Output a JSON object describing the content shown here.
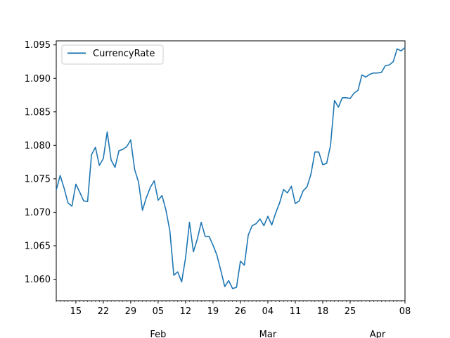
{
  "chart_data": {
    "type": "line",
    "title": "",
    "xlabel": "",
    "ylabel": "",
    "legend": {
      "placement": "top-left",
      "entries": [
        "CurrencyRate"
      ]
    },
    "grid": false,
    "xlim": [
      "2024-01-10",
      "2024-04-08"
    ],
    "ylim": [
      1.0568,
      1.0956
    ],
    "y_ticks": [
      1.06,
      1.065,
      1.07,
      1.075,
      1.08,
      1.085,
      1.09,
      1.095
    ],
    "y_tick_labels": [
      "1.060",
      "1.065",
      "1.070",
      "1.075",
      "1.080",
      "1.085",
      "1.090",
      "1.095"
    ],
    "x_day_ticks": [
      {
        "date": "2024-01-15",
        "label": "15"
      },
      {
        "date": "2024-01-22",
        "label": "22"
      },
      {
        "date": "2024-01-29",
        "label": "29"
      },
      {
        "date": "2024-02-05",
        "label": "05"
      },
      {
        "date": "2024-02-12",
        "label": "12"
      },
      {
        "date": "2024-02-19",
        "label": "19"
      },
      {
        "date": "2024-02-26",
        "label": "26"
      },
      {
        "date": "2024-03-04",
        "label": "04"
      },
      {
        "date": "2024-03-11",
        "label": "11"
      },
      {
        "date": "2024-03-18",
        "label": "18"
      },
      {
        "date": "2024-03-25",
        "label": "25"
      },
      {
        "date": "2024-04-08",
        "label": "08"
      }
    ],
    "x_month_labels": [
      {
        "date": "2024-02-05",
        "label": "Feb"
      },
      {
        "date": "2024-03-04",
        "label": "Mar"
      },
      {
        "date": "2024-04-01",
        "label": "Apr"
      }
    ],
    "series": [
      {
        "name": "CurrencyRate",
        "color": "#1f77b4",
        "points": [
          [
            "2024-01-10",
            1.0733
          ],
          [
            "2024-01-11",
            1.0755
          ],
          [
            "2024-01-12",
            1.0736
          ],
          [
            "2024-01-13",
            1.0714
          ],
          [
            "2024-01-14",
            1.0709
          ],
          [
            "2024-01-15",
            1.0742
          ],
          [
            "2024-01-16",
            1.073
          ],
          [
            "2024-01-17",
            1.0717
          ],
          [
            "2024-01-18",
            1.0716
          ],
          [
            "2024-01-19",
            1.0786
          ],
          [
            "2024-01-20",
            1.0797
          ],
          [
            "2024-01-21",
            1.077
          ],
          [
            "2024-01-22",
            1.078
          ],
          [
            "2024-01-23",
            1.082
          ],
          [
            "2024-01-24",
            1.0778
          ],
          [
            "2024-01-25",
            1.0767
          ],
          [
            "2024-01-26",
            1.0792
          ],
          [
            "2024-01-27",
            1.0794
          ],
          [
            "2024-01-28",
            1.0798
          ],
          [
            "2024-01-29",
            1.0808
          ],
          [
            "2024-01-30",
            1.0764
          ],
          [
            "2024-01-31",
            1.0745
          ],
          [
            "2024-02-01",
            1.0703
          ],
          [
            "2024-02-02",
            1.0722
          ],
          [
            "2024-02-03",
            1.0737
          ],
          [
            "2024-02-04",
            1.0747
          ],
          [
            "2024-02-05",
            1.0718
          ],
          [
            "2024-02-06",
            1.0725
          ],
          [
            "2024-02-07",
            1.0703
          ],
          [
            "2024-02-08",
            1.0672
          ],
          [
            "2024-02-09",
            1.0606
          ],
          [
            "2024-02-10",
            1.0611
          ],
          [
            "2024-02-11",
            1.0596
          ],
          [
            "2024-02-12",
            1.0632
          ],
          [
            "2024-02-13",
            1.0685
          ],
          [
            "2024-02-14",
            1.0641
          ],
          [
            "2024-02-15",
            1.066
          ],
          [
            "2024-02-16",
            1.0685
          ],
          [
            "2024-02-17",
            1.0664
          ],
          [
            "2024-02-18",
            1.0664
          ],
          [
            "2024-02-19",
            1.0651
          ],
          [
            "2024-02-20",
            1.0636
          ],
          [
            "2024-02-21",
            1.0613
          ],
          [
            "2024-02-22",
            1.0589
          ],
          [
            "2024-02-23",
            1.0598
          ],
          [
            "2024-02-24",
            1.0586
          ],
          [
            "2024-02-25",
            1.0588
          ],
          [
            "2024-02-26",
            1.0627
          ],
          [
            "2024-02-27",
            1.0621
          ],
          [
            "2024-02-28",
            1.0666
          ],
          [
            "2024-02-29",
            1.068
          ],
          [
            "2024-03-01",
            1.0683
          ],
          [
            "2024-03-02",
            1.069
          ],
          [
            "2024-03-03",
            1.068
          ],
          [
            "2024-03-04",
            1.0694
          ],
          [
            "2024-03-05",
            1.0681
          ],
          [
            "2024-03-06",
            1.0699
          ],
          [
            "2024-03-07",
            1.0714
          ],
          [
            "2024-03-08",
            1.0734
          ],
          [
            "2024-03-09",
            1.0729
          ],
          [
            "2024-03-10",
            1.0739
          ],
          [
            "2024-03-11",
            1.0713
          ],
          [
            "2024-03-12",
            1.0717
          ],
          [
            "2024-03-13",
            1.0732
          ],
          [
            "2024-03-14",
            1.0738
          ],
          [
            "2024-03-15",
            1.0757
          ],
          [
            "2024-03-16",
            1.079
          ],
          [
            "2024-03-17",
            1.079
          ],
          [
            "2024-03-18",
            1.0771
          ],
          [
            "2024-03-19",
            1.0773
          ],
          [
            "2024-03-20",
            1.08
          ],
          [
            "2024-03-21",
            1.0867
          ],
          [
            "2024-03-22",
            1.0857
          ],
          [
            "2024-03-23",
            1.0871
          ],
          [
            "2024-03-24",
            1.0871
          ],
          [
            "2024-03-25",
            1.087
          ],
          [
            "2024-03-26",
            1.0878
          ],
          [
            "2024-03-27",
            1.0882
          ],
          [
            "2024-03-28",
            1.0905
          ],
          [
            "2024-03-29",
            1.0902
          ],
          [
            "2024-03-30",
            1.0906
          ],
          [
            "2024-03-31",
            1.0908
          ],
          [
            "2024-04-01",
            1.0908
          ],
          [
            "2024-04-02",
            1.0909
          ],
          [
            "2024-04-03",
            1.0919
          ],
          [
            "2024-04-04",
            1.092
          ],
          [
            "2024-04-05",
            1.0925
          ],
          [
            "2024-04-06",
            1.0944
          ],
          [
            "2024-04-07",
            1.0941
          ],
          [
            "2024-04-08",
            1.0946
          ]
        ]
      }
    ]
  }
}
